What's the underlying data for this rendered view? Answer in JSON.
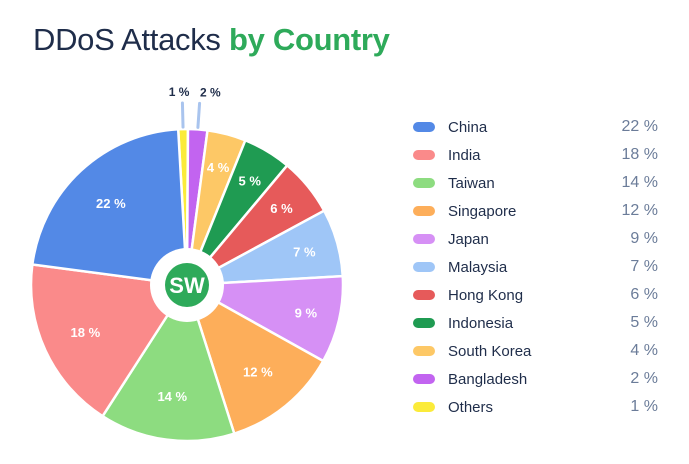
{
  "title": {
    "main": "DDoS Attacks",
    "accent": "by Country"
  },
  "logo": {
    "text": "SW",
    "icon": "similarweb-logo",
    "color": "#2eaa5a"
  },
  "chart_data": {
    "type": "pie",
    "title": "DDoS Attacks by Country",
    "unit": "%",
    "legend_position": "right",
    "slices": [
      {
        "name": "China",
        "value": 22,
        "label": "22 %",
        "color": "#5389e6"
      },
      {
        "name": "India",
        "value": 18,
        "label": "18 %",
        "color": "#fa8a8a"
      },
      {
        "name": "Taiwan",
        "value": 14,
        "label": "14 %",
        "color": "#8ddc80"
      },
      {
        "name": "Singapore",
        "value": 12,
        "label": "12 %",
        "color": "#fdae5a"
      },
      {
        "name": "Japan",
        "value": 9,
        "label": "9 %",
        "color": "#d690f5"
      },
      {
        "name": "Malaysia",
        "value": 7,
        "label": "7 %",
        "color": "#9fc6f7"
      },
      {
        "name": "Hong Kong",
        "value": 6,
        "label": "6 %",
        "color": "#e65a5a"
      },
      {
        "name": "Indonesia",
        "value": 5,
        "label": "5 %",
        "color": "#1f9b52"
      },
      {
        "name": "South Korea",
        "value": 4,
        "label": "4 %",
        "color": "#fdc866"
      },
      {
        "name": "Bangladesh",
        "value": 2,
        "label": "2 %",
        "color": "#c264f0"
      },
      {
        "name": "Others",
        "value": 1,
        "label": "1 %",
        "color": "#fbeb3a"
      }
    ]
  }
}
